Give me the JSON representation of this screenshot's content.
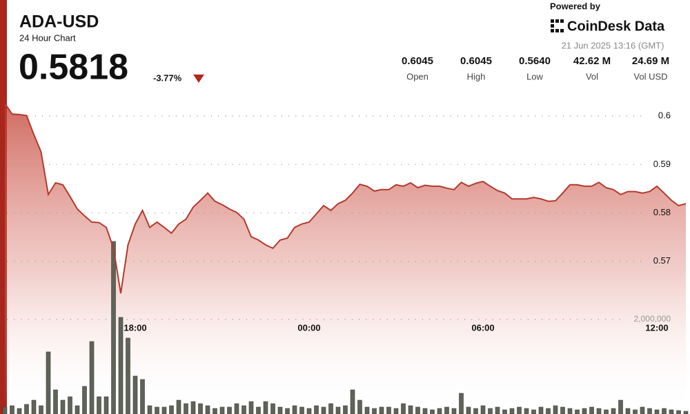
{
  "header": {
    "powered_by": "Powered by",
    "brand": "CoinDesk Data",
    "timestamp": "21 Jun 2025 13:16 (GMT)",
    "price": "0.5818",
    "change": "-3.77%",
    "stats": [
      {
        "value": "0.6045",
        "label": "Open"
      },
      {
        "value": "0.6045",
        "label": "High"
      },
      {
        "value": "0.5640",
        "label": "Low"
      },
      {
        "value": "42.62 M",
        "label": "Vol"
      },
      {
        "value": "24.69 M",
        "label": "Vol USD"
      }
    ]
  },
  "chart_data": {
    "type": "line",
    "title": "ADA-USD",
    "subtitle": "24 Hour Chart",
    "categories": [
      null,
      null,
      null,
      null,
      null,
      null,
      null,
      null,
      null,
      null,
      null,
      null,
      null,
      null,
      null,
      null,
      null,
      null,
      "18:00",
      null,
      null,
      null,
      null,
      null,
      null,
      null,
      null,
      null,
      null,
      null,
      null,
      null,
      null,
      null,
      null,
      null,
      null,
      null,
      null,
      null,
      null,
      null,
      "00:00",
      null,
      null,
      null,
      null,
      null,
      null,
      null,
      null,
      null,
      null,
      null,
      null,
      null,
      null,
      null,
      null,
      null,
      null,
      null,
      null,
      null,
      null,
      null,
      "06:00",
      null,
      null,
      null,
      null,
      null,
      null,
      null,
      null,
      null,
      null,
      null,
      null,
      null,
      null,
      null,
      null,
      null,
      null,
      null,
      null,
      null,
      null,
      null,
      "12:00",
      null,
      null,
      null,
      null
    ],
    "series": [
      {
        "type": "line",
        "color": "#b3392c",
        "values": [
          0.6026,
          0.6004,
          0.6003,
          0.6001,
          0.5962,
          0.5926,
          0.5838,
          0.5862,
          0.5858,
          0.5834,
          0.5808,
          0.5794,
          0.5781,
          0.578,
          0.577,
          0.5727,
          0.5634,
          0.5734,
          0.5777,
          0.5805,
          0.577,
          0.5781,
          0.577,
          0.5758,
          0.5777,
          0.5787,
          0.5812,
          0.5826,
          0.5841,
          0.5824,
          0.5817,
          0.5808,
          0.5801,
          0.5787,
          0.5751,
          0.5744,
          0.5734,
          0.5727,
          0.5744,
          0.5748,
          0.577,
          0.5777,
          0.5781,
          0.5798,
          0.5815,
          0.5805,
          0.5819,
          0.5826,
          0.5841,
          0.5859,
          0.5855,
          0.5845,
          0.5848,
          0.5848,
          0.5858,
          0.5855,
          0.5862,
          0.5852,
          0.5857,
          0.5855,
          0.5855,
          0.5851,
          0.5848,
          0.5863,
          0.5855,
          0.5861,
          0.5865,
          0.5855,
          0.5846,
          0.5841,
          0.5829,
          0.5829,
          0.5829,
          0.5832,
          0.5829,
          0.5824,
          0.5825,
          0.5841,
          0.5858,
          0.5858,
          0.5855,
          0.5855,
          0.5863,
          0.5852,
          0.5848,
          0.5838,
          0.5844,
          0.5844,
          0.5841,
          0.5844,
          0.5855,
          0.5841,
          0.5826,
          0.5815,
          0.5819
        ]
      },
      {
        "type": "bar",
        "axis": "y2",
        "color": "#5f6358",
        "values": [
          146000,
          175000,
          117000,
          204000,
          292000,
          175000,
          1314000,
          511000,
          292000,
          365000,
          175000,
          584000,
          1533000,
          365000,
          365000,
          3650000,
          2044000,
          1606000,
          803000,
          730000,
          175000,
          146000,
          146000,
          175000,
          292000,
          219000,
          263000,
          219000,
          175000,
          117000,
          146000,
          146000,
          219000,
          175000,
          263000,
          146000,
          263000,
          219000,
          146000,
          117000,
          175000,
          146000,
          117000,
          175000,
          146000,
          219000,
          146000,
          175000,
          511000,
          292000,
          146000,
          117000,
          146000,
          146000,
          117000,
          219000,
          175000,
          146000,
          117000,
          88000,
          117000,
          146000,
          117000,
          438000,
          146000,
          117000,
          175000,
          117000,
          146000,
          88000,
          117000,
          146000,
          117000,
          88000,
          146000,
          117000,
          175000,
          146000,
          117000,
          88000,
          117000,
          146000,
          117000,
          88000,
          117000,
          292000,
          117000,
          88000,
          146000,
          117000,
          88000,
          117000,
          88000,
          73000,
          58000
        ]
      }
    ],
    "ylim": [
      0.5385,
      0.604
    ],
    "yticks": [
      0.6,
      0.59,
      0.58,
      0.57
    ],
    "y2lim": [
      0,
      6715000
    ],
    "y2ticks": [
      {
        "value": 2000000,
        "label": "2,000,000"
      }
    ],
    "grid": true
  }
}
